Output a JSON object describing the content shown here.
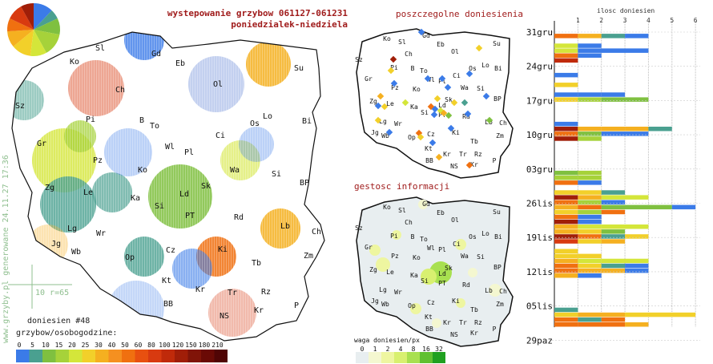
{
  "title_line1": "wystepowanie grzybow 061127-061231",
  "title_line2": "poniedzialek-niedziela",
  "side_text": "www.grzyby.pl generowane 24.11.27 17:36",
  "scale_text": "10 r=65",
  "reports_count_label": "doniesien #48",
  "legend_title": "grzybow/osobogodzine:",
  "legend_ticks": [
    "0",
    "5",
    "10",
    "15",
    "20",
    "25",
    "30",
    "40",
    "50",
    "60",
    "80",
    "100",
    "120",
    "150",
    "180",
    "210"
  ],
  "legend_colors": [
    "#3b7be8",
    "#4aa090",
    "#7fc040",
    "#a6d23a",
    "#d4e63a",
    "#f2d02a",
    "#f5b020",
    "#f59020",
    "#f07010",
    "#e85010",
    "#d83a10",
    "#c02a0a",
    "#a01e08",
    "#801408",
    "#6a0a05",
    "#500505"
  ],
  "panel_reports_title": "poszczegolne doniesienia",
  "panel_density_title": "gestosc informacji",
  "density_legend_title": "waga doniesien/px",
  "density_legend_ticks": [
    "0",
    "1",
    "2",
    "4",
    "8",
    "16",
    "32"
  ],
  "density_legend_colors": [
    "#e8eef0",
    "#f4f7d0",
    "#eef6a0",
    "#d8f070",
    "#a8e050",
    "#60c030",
    "#20a020"
  ],
  "bar_chart_title": "ilosc doniesien",
  "cities_main": [
    {
      "n": "Sl",
      "x": 125,
      "y": 63
    },
    {
      "n": "Gd",
      "x": 195,
      "y": 70
    },
    {
      "n": "Ko",
      "x": 93,
      "y": 80
    },
    {
      "n": "Eb",
      "x": 225,
      "y": 82
    },
    {
      "n": "Su",
      "x": 373,
      "y": 88
    },
    {
      "n": "Ch",
      "x": 150,
      "y": 115
    },
    {
      "n": "Ol",
      "x": 272,
      "y": 108
    },
    {
      "n": "Sz",
      "x": 25,
      "y": 135
    },
    {
      "n": "Pi",
      "x": 113,
      "y": 152
    },
    {
      "n": "B",
      "x": 177,
      "y": 153
    },
    {
      "n": "Lo",
      "x": 334,
      "y": 148
    },
    {
      "n": "Bi",
      "x": 383,
      "y": 154
    },
    {
      "n": "To",
      "x": 193,
      "y": 160
    },
    {
      "n": "Os",
      "x": 318,
      "y": 157
    },
    {
      "n": "Gr",
      "x": 52,
      "y": 182
    },
    {
      "n": "Ci",
      "x": 275,
      "y": 172
    },
    {
      "n": "Wl",
      "x": 212,
      "y": 186
    },
    {
      "n": "Pl",
      "x": 236,
      "y": 193
    },
    {
      "n": "Pz",
      "x": 122,
      "y": 203
    },
    {
      "n": "Ko",
      "x": 178,
      "y": 215
    },
    {
      "n": "Wa",
      "x": 293,
      "y": 215
    },
    {
      "n": "Si",
      "x": 345,
      "y": 220
    },
    {
      "n": "Zg",
      "x": 62,
      "y": 237
    },
    {
      "n": "Le",
      "x": 110,
      "y": 243
    },
    {
      "n": "Sk",
      "x": 257,
      "y": 235
    },
    {
      "n": "Ld",
      "x": 230,
      "y": 245
    },
    {
      "n": "BP",
      "x": 380,
      "y": 231
    },
    {
      "n": "Ka",
      "x": 169,
      "y": 250
    },
    {
      "n": "Si",
      "x": 199,
      "y": 260
    },
    {
      "n": "PT",
      "x": 237,
      "y": 272
    },
    {
      "n": "Rd",
      "x": 298,
      "y": 274
    },
    {
      "n": "Lb",
      "x": 356,
      "y": 285
    },
    {
      "n": "Lg",
      "x": 90,
      "y": 288
    },
    {
      "n": "Wr",
      "x": 126,
      "y": 294
    },
    {
      "n": "Ch",
      "x": 395,
      "y": 292
    },
    {
      "n": "Jg",
      "x": 70,
      "y": 307
    },
    {
      "n": "Wb",
      "x": 95,
      "y": 317
    },
    {
      "n": "Ki",
      "x": 278,
      "y": 314
    },
    {
      "n": "Op",
      "x": 162,
      "y": 324
    },
    {
      "n": "Cz",
      "x": 213,
      "y": 315
    },
    {
      "n": "Zm",
      "x": 385,
      "y": 322
    },
    {
      "n": "Tb",
      "x": 320,
      "y": 331
    },
    {
      "n": "Kt",
      "x": 208,
      "y": 353
    },
    {
      "n": "Kr",
      "x": 250,
      "y": 364
    },
    {
      "n": "Tr",
      "x": 290,
      "y": 368
    },
    {
      "n": "Rz",
      "x": 332,
      "y": 367
    },
    {
      "n": "BB",
      "x": 210,
      "y": 382
    },
    {
      "n": "Kr",
      "x": 323,
      "y": 390
    },
    {
      "n": "P",
      "x": 370,
      "y": 384
    },
    {
      "n": "NS",
      "x": 280,
      "y": 397
    }
  ],
  "blobs": [
    {
      "x": 180,
      "y": 50,
      "r": 25,
      "c": "#3b7be8",
      "o": 0.8
    },
    {
      "x": 120,
      "y": 110,
      "r": 35,
      "c": "#d83a10",
      "o": 0.45
    },
    {
      "x": 335,
      "y": 80,
      "r": 28,
      "c": "#f5b020",
      "o": 0.85
    },
    {
      "x": 270,
      "y": 105,
      "r": 35,
      "c": "#6a8ad8",
      "o": 0.4
    },
    {
      "x": 30,
      "y": 125,
      "r": 25,
      "c": "#4aa090",
      "o": 0.55
    },
    {
      "x": 80,
      "y": 200,
      "r": 40,
      "c": "#d4e63a",
      "o": 0.8
    },
    {
      "x": 100,
      "y": 170,
      "r": 20,
      "c": "#a6d23a",
      "o": 0.75
    },
    {
      "x": 85,
      "y": 255,
      "r": 35,
      "c": "#4aa090",
      "o": 0.8
    },
    {
      "x": 140,
      "y": 240,
      "r": 25,
      "c": "#4aa090",
      "o": 0.7
    },
    {
      "x": 225,
      "y": 245,
      "r": 40,
      "c": "#7fc040",
      "o": 0.85
    },
    {
      "x": 270,
      "y": 320,
      "r": 25,
      "c": "#f07010",
      "o": 0.85
    },
    {
      "x": 350,
      "y": 285,
      "r": 25,
      "c": "#f5b020",
      "o": 0.85
    },
    {
      "x": 180,
      "y": 320,
      "r": 25,
      "c": "#4aa090",
      "o": 0.8
    },
    {
      "x": 240,
      "y": 335,
      "r": 25,
      "c": "#3b7be8",
      "o": 0.6
    },
    {
      "x": 300,
      "y": 200,
      "r": 25,
      "c": "#d4e63a",
      "o": 0.6
    },
    {
      "x": 320,
      "y": 180,
      "r": 22,
      "c": "#3b7be8",
      "o": 0.35
    },
    {
      "x": 290,
      "y": 390,
      "r": 30,
      "c": "#d83a10",
      "o": 0.35
    },
    {
      "x": 170,
      "y": 385,
      "r": 35,
      "c": "#3b7be8",
      "o": 0.3
    },
    {
      "x": 60,
      "y": 305,
      "r": 25,
      "c": "#f5b020",
      "o": 0.35
    },
    {
      "x": 160,
      "y": 190,
      "r": 30,
      "c": "#3b7be8",
      "o": 0.35
    }
  ],
  "pie": [
    {
      "v": 12,
      "c": "#3b7be8"
    },
    {
      "v": 6,
      "c": "#4aa090"
    },
    {
      "v": 10,
      "c": "#7fc040"
    },
    {
      "v": 14,
      "c": "#a6d23a"
    },
    {
      "v": 10,
      "c": "#d4e63a"
    },
    {
      "v": 12,
      "c": "#f2d02a"
    },
    {
      "v": 10,
      "c": "#f5b020"
    },
    {
      "v": 8,
      "c": "#f07010"
    },
    {
      "v": 10,
      "c": "#d83a10"
    },
    {
      "v": 8,
      "c": "#a01e08"
    }
  ],
  "cities_small": [
    {
      "n": "Sl",
      "x": 502,
      "y": 55
    },
    {
      "n": "Gd",
      "x": 532,
      "y": 47
    },
    {
      "n": "Su",
      "x": 620,
      "y": 57
    },
    {
      "n": "Ko",
      "x": 483,
      "y": 51
    },
    {
      "n": "Eb",
      "x": 550,
      "y": 58
    },
    {
      "n": "Ch",
      "x": 510,
      "y": 70
    },
    {
      "n": "Ol",
      "x": 568,
      "y": 67
    },
    {
      "n": "Sz",
      "x": 448,
      "y": 77
    },
    {
      "n": "B",
      "x": 515,
      "y": 88
    },
    {
      "n": "To",
      "x": 529,
      "y": 91
    },
    {
      "n": "Lo",
      "x": 606,
      "y": 84
    },
    {
      "n": "Pi",
      "x": 492,
      "y": 87
    },
    {
      "n": "Os",
      "x": 590,
      "y": 88
    },
    {
      "n": "Bi",
      "x": 622,
      "y": 88
    },
    {
      "n": "Wl",
      "x": 538,
      "y": 102
    },
    {
      "n": "Pl",
      "x": 552,
      "y": 104
    },
    {
      "n": "Ci",
      "x": 570,
      "y": 97
    },
    {
      "n": "Gr",
      "x": 460,
      "y": 101
    },
    {
      "n": "Pz",
      "x": 493,
      "y": 112
    },
    {
      "n": "Ko",
      "x": 520,
      "y": 114
    },
    {
      "n": "Wa",
      "x": 580,
      "y": 112
    },
    {
      "n": "Si",
      "x": 600,
      "y": 113
    },
    {
      "n": "Zg",
      "x": 466,
      "y": 129
    },
    {
      "n": "Le",
      "x": 487,
      "y": 132
    },
    {
      "n": "Sk",
      "x": 560,
      "y": 127
    },
    {
      "n": "BP",
      "x": 621,
      "y": 126
    },
    {
      "n": "Ka",
      "x": 517,
      "y": 136
    },
    {
      "n": "Ld",
      "x": 552,
      "y": 134
    },
    {
      "n": "Si",
      "x": 530,
      "y": 143
    },
    {
      "n": "PT",
      "x": 552,
      "y": 146
    },
    {
      "n": "Rd",
      "x": 582,
      "y": 148
    },
    {
      "n": "Lb",
      "x": 610,
      "y": 155
    },
    {
      "n": "Lg",
      "x": 478,
      "y": 154
    },
    {
      "n": "Wr",
      "x": 497,
      "y": 157
    },
    {
      "n": "Ch",
      "x": 628,
      "y": 156
    },
    {
      "n": "Jg",
      "x": 468,
      "y": 168
    },
    {
      "n": "Wb",
      "x": 481,
      "y": 172
    },
    {
      "n": "Cz",
      "x": 538,
      "y": 170
    },
    {
      "n": "Ki",
      "x": 569,
      "y": 168
    },
    {
      "n": "Zm",
      "x": 624,
      "y": 172
    },
    {
      "n": "Op",
      "x": 514,
      "y": 174
    },
    {
      "n": "Tb",
      "x": 592,
      "y": 179
    },
    {
      "n": "Kt",
      "x": 535,
      "y": 188
    },
    {
      "n": "Kr",
      "x": 558,
      "y": 195
    },
    {
      "n": "Tr",
      "x": 578,
      "y": 195
    },
    {
      "n": "Rz",
      "x": 597,
      "y": 195
    },
    {
      "n": "BB",
      "x": 536,
      "y": 203
    },
    {
      "n": "NS",
      "x": 567,
      "y": 210
    },
    {
      "n": "Kr",
      "x": 592,
      "y": 208
    },
    {
      "n": "P",
      "x": 617,
      "y": 203
    }
  ],
  "report_dots": [
    {
      "x": 526,
      "y": 40,
      "c": "#3b7be8"
    },
    {
      "x": 598,
      "y": 60,
      "c": "#f2d02a"
    },
    {
      "x": 491,
      "y": 74,
      "c": "#a01e08"
    },
    {
      "x": 488,
      "y": 88,
      "c": "#f2d02a"
    },
    {
      "x": 492,
      "y": 104,
      "c": "#3b7be8"
    },
    {
      "x": 475,
      "y": 120,
      "c": "#f5b020"
    },
    {
      "x": 472,
      "y": 132,
      "c": "#3b7be8"
    },
    {
      "x": 480,
      "y": 133,
      "c": "#f2d02a"
    },
    {
      "x": 506,
      "y": 128,
      "c": "#d4e63a"
    },
    {
      "x": 534,
      "y": 98,
      "c": "#3b7be8"
    },
    {
      "x": 552,
      "y": 98,
      "c": "#3b7be8"
    },
    {
      "x": 559,
      "y": 109,
      "c": "#3b7be8"
    },
    {
      "x": 546,
      "y": 123,
      "c": "#f2d02a"
    },
    {
      "x": 538,
      "y": 133,
      "c": "#f07010"
    },
    {
      "x": 543,
      "y": 136,
      "c": "#3b7be8"
    },
    {
      "x": 550,
      "y": 138,
      "c": "#d4e63a"
    },
    {
      "x": 554,
      "y": 141,
      "c": "#f5b020"
    },
    {
      "x": 542,
      "y": 143,
      "c": "#3b7be8"
    },
    {
      "x": 560,
      "y": 144,
      "c": "#7fc040"
    },
    {
      "x": 567,
      "y": 128,
      "c": "#f2d02a"
    },
    {
      "x": 580,
      "y": 128,
      "c": "#4aa090"
    },
    {
      "x": 607,
      "y": 120,
      "c": "#3b7be8"
    },
    {
      "x": 611,
      "y": 150,
      "c": "#7fc040"
    },
    {
      "x": 584,
      "y": 142,
      "c": "#3b7be8"
    },
    {
      "x": 563,
      "y": 160,
      "c": "#3b7be8"
    },
    {
      "x": 523,
      "y": 166,
      "c": "#f07010"
    },
    {
      "x": 525,
      "y": 171,
      "c": "#f2d02a"
    },
    {
      "x": 540,
      "y": 178,
      "c": "#3b7be8"
    },
    {
      "x": 548,
      "y": 196,
      "c": "#f5b020"
    },
    {
      "x": 586,
      "y": 206,
      "c": "#f07010"
    },
    {
      "x": 586,
      "y": 92,
      "c": "#3b7be8"
    },
    {
      "x": 472,
      "y": 150,
      "c": "#f2d02a"
    },
    {
      "x": 486,
      "y": 165,
      "c": "#3b7be8"
    }
  ],
  "density_spots": [
    {
      "x": 550,
      "y": 340,
      "r": 14,
      "c": "#a8e050"
    },
    {
      "x": 535,
      "y": 345,
      "r": 10,
      "c": "#d8f070"
    },
    {
      "x": 478,
      "y": 330,
      "r": 9,
      "c": "#eef6a0"
    },
    {
      "x": 468,
      "y": 312,
      "r": 7,
      "c": "#eef6a0"
    },
    {
      "x": 495,
      "y": 293,
      "r": 6,
      "c": "#eef6a0"
    },
    {
      "x": 528,
      "y": 255,
      "r": 6,
      "c": "#f4f7d0"
    },
    {
      "x": 575,
      "y": 305,
      "r": 7,
      "c": "#eef6a0"
    },
    {
      "x": 618,
      "y": 362,
      "r": 8,
      "c": "#f4f7d0"
    },
    {
      "x": 590,
      "y": 340,
      "r": 6,
      "c": "#f4f7d0"
    },
    {
      "x": 519,
      "y": 385,
      "r": 7,
      "c": "#eef6a0"
    },
    {
      "x": 575,
      "y": 378,
      "r": 6,
      "c": "#eef6a0"
    },
    {
      "x": 545,
      "y": 403,
      "r": 6,
      "c": "#f4f7d0"
    }
  ],
  "chart_data": {
    "type": "bar",
    "title": "ilosc doniesien",
    "x_ticks": [
      1,
      2,
      3,
      4,
      5,
      6
    ],
    "xlim": [
      0,
      6.2
    ],
    "row_labels": [
      {
        "label": "31gru",
        "index": 0
      },
      {
        "label": "24gru",
        "index": 7
      },
      {
        "label": "17gru",
        "index": 14
      },
      {
        "label": "10gru",
        "index": 21
      },
      {
        "label": "03gru",
        "index": 28
      },
      {
        "label": "26lis",
        "index": 35
      },
      {
        "label": "19lis",
        "index": 42
      },
      {
        "label": "12lis",
        "index": 49
      },
      {
        "label": "05lis",
        "index": 56
      },
      {
        "label": "29paz",
        "index": 63
      }
    ],
    "rows": [
      [
        [
          "#3b7be8",
          0
        ]
      ],
      [
        [
          "#f07010",
          1
        ],
        [
          "#f5b020",
          1
        ],
        [
          "#4aa090",
          1
        ],
        [
          "#3b7be8",
          1
        ]
      ],
      [],
      [
        [
          "#d4e63a",
          1
        ],
        [
          "#3b7be8",
          1
        ]
      ],
      [
        [
          "#d4e63a",
          1
        ],
        [
          "#3b7be8",
          3
        ]
      ],
      [
        [
          "#f07010",
          1
        ],
        [
          "#3b7be8",
          1
        ]
      ],
      [
        [
          "#c02a0a",
          1
        ]
      ],
      [],
      [],
      [
        [
          "#3b7be8",
          1
        ]
      ],
      [],
      [
        [
          "#f2d02a",
          1
        ]
      ],
      [],
      [
        [
          "#3b7be8",
          1
        ],
        [
          "#3b7be8",
          1
        ],
        [
          "#3b7be8",
          1
        ]
      ],
      [
        [
          "#f2d02a",
          1
        ],
        [
          "#a6d23a",
          1
        ],
        [
          "#7fc040",
          2
        ]
      ],
      [],
      [],
      [],
      [],
      [
        [
          "#3b7be8",
          1
        ]
      ],
      [
        [
          "#a01e08",
          1
        ],
        [
          "#f5b020",
          1
        ],
        [
          "#f5b020",
          1
        ],
        [
          "#f5b020",
          1
        ],
        [
          "#4aa090",
          1
        ]
      ],
      [
        [
          "#f07010",
          1
        ],
        [
          "#7fc040",
          1
        ],
        [
          "#3b7be8",
          2
        ]
      ],
      [
        [
          "#a01e08",
          1
        ],
        [
          "#a6d23a",
          1
        ]
      ],
      [],
      [],
      [],
      [],
      [],
      [],
      [
        [
          "#7fc040",
          1
        ],
        [
          "#a6d23a",
          1
        ]
      ],
      [
        [
          "#a6d23a",
          1
        ],
        [
          "#a6d23a",
          1
        ]
      ],
      [
        [
          "#f07010",
          1
        ],
        [
          "#3b7be8",
          1
        ]
      ],
      [],
      [
        [
          "#f2d02a",
          1
        ],
        [
          "#f2d02a",
          1
        ],
        [
          "#4aa090",
          1
        ]
      ],
      [
        [
          "#a01e08",
          1
        ],
        [
          "#f5b020",
          1
        ],
        [
          "#d4e63a",
          2
        ]
      ],
      [
        [
          "#f07010",
          1
        ],
        [
          "#a6d23a",
          1
        ],
        [
          "#3b7be8",
          1
        ]
      ],
      [
        [
          "#f5b020",
          1
        ],
        [
          "#f07010",
          1
        ],
        [
          "#7fc040",
          3
        ],
        [
          "#3b7be8",
          1
        ]
      ],
      [
        [
          "#f2d02a",
          1
        ],
        [
          "#a6d23a",
          1
        ],
        [
          "#f07010",
          1
        ]
      ],
      [
        [
          "#f07010",
          1
        ],
        [
          "#3b7be8",
          1
        ]
      ],
      [
        [
          "#a01e08",
          1
        ],
        [
          "#3b7be8",
          1
        ]
      ],
      [
        [
          "#f5b020",
          1
        ],
        [
          "#d4e63a",
          1
        ],
        [
          "#d4e63a",
          2
        ]
      ],
      [
        [
          "#f5b020",
          1
        ],
        [
          "#f2d02a",
          1
        ],
        [
          "#7fc040",
          1
        ]
      ],
      [
        [
          "#a01e08",
          1
        ],
        [
          "#f07010",
          1
        ],
        [
          "#4aa090",
          1
        ],
        [
          "#f2d02a",
          1
        ]
      ],
      [
        [
          "#d83a10",
          1
        ],
        [
          "#f2d02a",
          1
        ],
        [
          "#f5b020",
          1
        ]
      ],
      [],
      [
        [
          "#f2d02a",
          1
        ]
      ],
      [
        [
          "#f2d02a",
          1
        ],
        [
          "#f2d02a",
          1
        ]
      ],
      [
        [
          "#f5b020",
          1
        ],
        [
          "#d4e63a",
          1
        ],
        [
          "#d4e63a",
          2
        ]
      ],
      [
        [
          "#f07010",
          1
        ],
        [
          "#f2d02a",
          1
        ],
        [
          "#4aa090",
          1
        ],
        [
          "#3b7be8",
          1
        ]
      ],
      [
        [
          "#f07010",
          1
        ],
        [
          "#f5b020",
          1
        ],
        [
          "#f5b020",
          1
        ],
        [
          "#3b7be8",
          1
        ]
      ],
      [
        [
          "#f5b020",
          1
        ],
        [
          "#3b7be8",
          1
        ]
      ],
      [],
      [],
      [],
      [],
      [],
      [],
      [
        [
          "#4aa090",
          1
        ]
      ],
      [
        [
          "#f2d02a",
          1
        ],
        [
          "#f5b020",
          2
        ],
        [
          "#f2d02a",
          3
        ]
      ],
      [
        [
          "#f07010",
          1
        ],
        [
          "#4aa090",
          1
        ],
        [
          "#f07010",
          1
        ]
      ],
      [
        [
          "#f07010",
          1
        ],
        [
          "#f07010",
          2
        ],
        [
          "#f5b020",
          1
        ]
      ]
    ]
  }
}
